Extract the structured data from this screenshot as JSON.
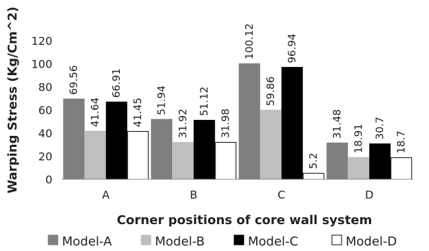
{
  "chart_data": {
    "type": "bar",
    "categories": [
      "A",
      "B",
      "C",
      "D"
    ],
    "series": [
      {
        "name": "Model-A",
        "color": "#7f7f7f",
        "values": [
          69.56,
          51.94,
          100.12,
          31.48
        ],
        "labels": [
          "69.56",
          "51.94",
          "100.12",
          "31.48"
        ]
      },
      {
        "name": "Model-B",
        "color": "#bfbfbf",
        "values": [
          41.64,
          31.92,
          59.86,
          18.91
        ],
        "labels": [
          "41.64",
          "31.92",
          "59.86",
          "18.91"
        ]
      },
      {
        "name": "Model-C",
        "color": "#000000",
        "values": [
          66.91,
          51.12,
          96.94,
          30.7
        ],
        "labels": [
          "66.91",
          "51.12",
          "96.94",
          "30.7"
        ]
      },
      {
        "name": "Model-D",
        "color": "#ffffff",
        "values": [
          41.45,
          31.98,
          5.2,
          18.7
        ],
        "labels": [
          "41.45",
          "31.98",
          "5.2",
          "18.7"
        ]
      }
    ],
    "xlabel": "Corner positions of core wall system",
    "ylabel": "Warping Stress (Kg/Cm^2)",
    "ylim": [
      0,
      120
    ],
    "yticks": [
      0,
      20,
      40,
      60,
      80,
      100,
      120
    ],
    "grid": false,
    "legend_position": "bottom"
  }
}
